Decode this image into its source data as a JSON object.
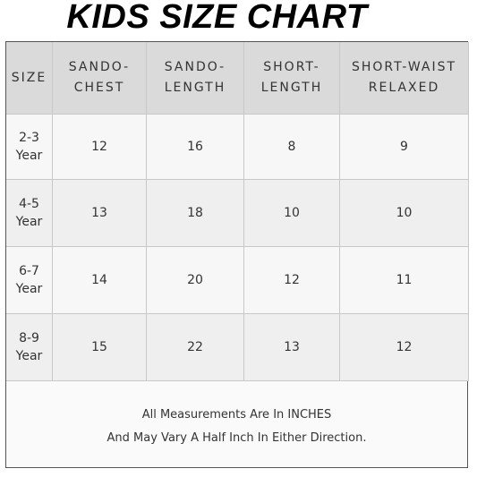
{
  "title": "KIDS SIZE CHART",
  "table": {
    "header": [
      [
        "SIZE"
      ],
      [
        "SANDO-",
        "CHEST"
      ],
      [
        "SANDO-",
        "LENGTH"
      ],
      [
        "SHORT-",
        "LENGTH"
      ],
      [
        "SHORT-WAIST",
        "RELAXED"
      ]
    ],
    "rows": [
      [
        [
          "2-3",
          "Year"
        ],
        12,
        16,
        8,
        9
      ],
      [
        [
          "4-5",
          "Year"
        ],
        13,
        18,
        10,
        10
      ],
      [
        [
          "6-7",
          "Year"
        ],
        14,
        20,
        12,
        11
      ],
      [
        [
          "8-9",
          "Year"
        ],
        15,
        22,
        13,
        12
      ]
    ]
  },
  "note": [
    "All Measurements Are In INCHES",
    "And May Vary A Half Inch In Either Direction."
  ]
}
